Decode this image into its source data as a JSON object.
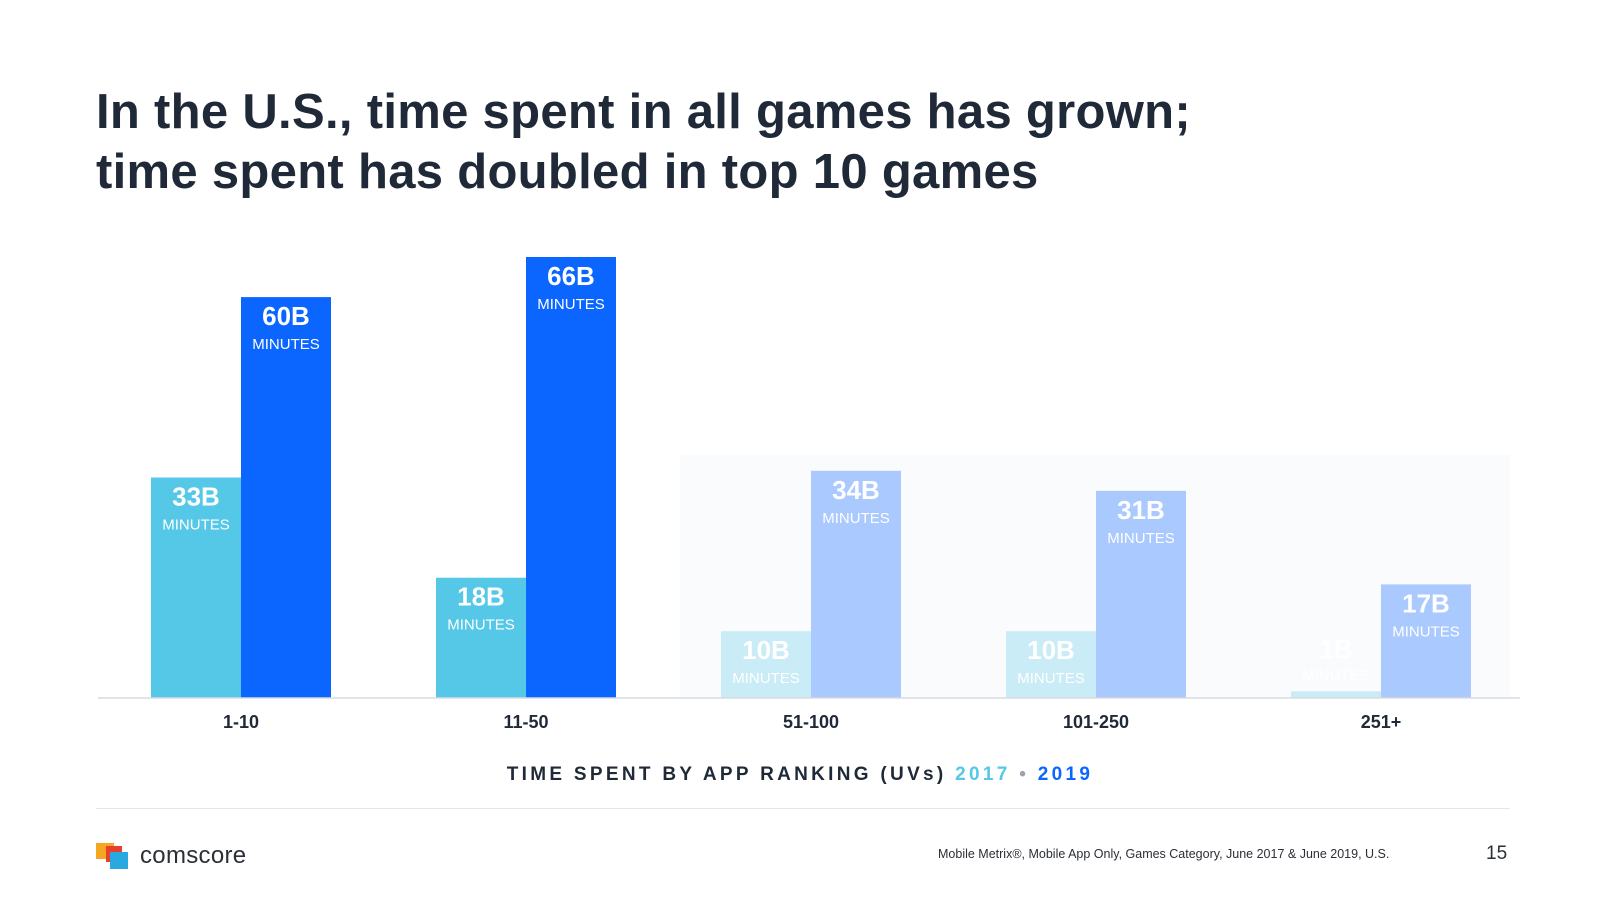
{
  "title": {
    "line1": "In the U.S., time spent in all games has grown;",
    "line2": "time spent has doubled in top 10 games"
  },
  "chart_data": {
    "type": "bar",
    "title": "In the U.S., time spent in all games has grown; time spent has doubled in top 10 games",
    "xlabel": "TIME SPENT BY APP RANKING (UVs)",
    "ylabel": "",
    "categories": [
      "1-10",
      "11-50",
      "51-100",
      "101-250",
      "251+"
    ],
    "series": [
      {
        "name": "2017",
        "values": [
          33,
          18,
          10,
          10,
          1
        ],
        "color": "#55c8e8",
        "faded_color": "#c9ecf6"
      },
      {
        "name": "2019",
        "values": [
          60,
          66,
          34,
          31,
          17
        ],
        "color": "#0a66ff",
        "faded_color": "#a9c9ff"
      }
    ],
    "data_labels": {
      "2017": [
        "33B",
        "18B",
        "10B",
        "10B",
        "1B"
      ],
      "2019": [
        "60B",
        "66B",
        "34B",
        "31B",
        "17B"
      ]
    },
    "unit_label": "MINUTES",
    "highlighted_categories": [
      "1-10",
      "11-50"
    ],
    "ylim": [
      0,
      66
    ],
    "grid": false,
    "legend": "inline in axis title"
  },
  "axis_title": {
    "text": "TIME SPENT BY APP RANKING (UVs)",
    "year1": "2017",
    "separator": "•",
    "year2": "2019"
  },
  "footer": {
    "brand": "comscore",
    "source": "Mobile Metrix®, Mobile App Only, Games Category, June 2017 & June 2019, U.S.",
    "page_number": "15"
  }
}
